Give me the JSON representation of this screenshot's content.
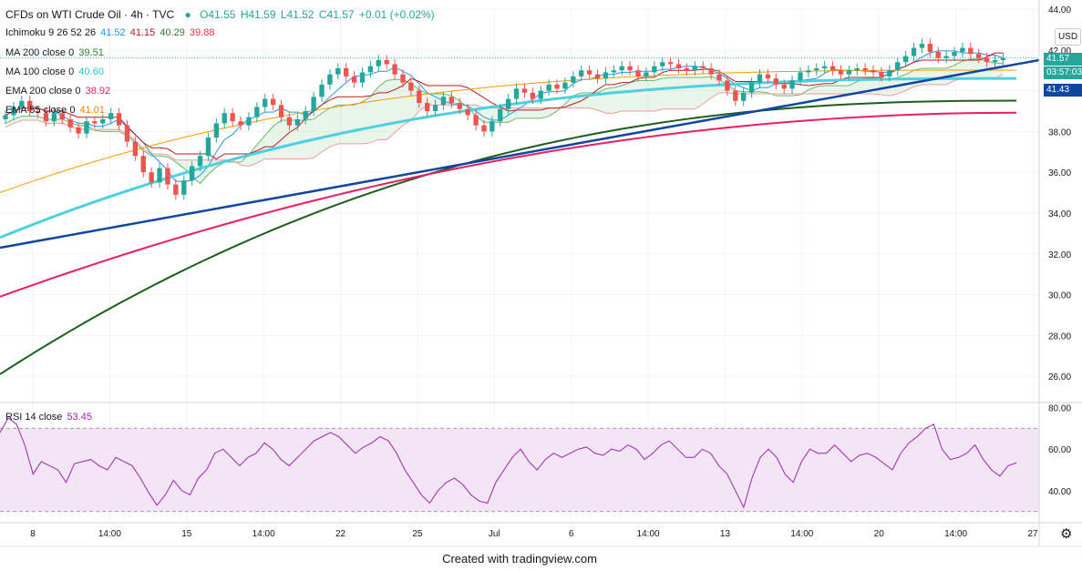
{
  "header": {
    "symbol": "CFDs on WTI Crude Oil · 4h · TVC",
    "open": "O41.55",
    "high": "H41.59",
    "low": "L41.52",
    "close": "C41.57",
    "change": "+0.01 (+0.02%)"
  },
  "indicators": [
    {
      "label": "Ichimoku 9 26 52 26",
      "values": [
        "41.52",
        "41.15",
        "40.29",
        "39.88"
      ],
      "colors": [
        "#2196f3",
        "#b71c1c",
        "#2e7d32",
        "#e53935"
      ]
    },
    {
      "label": "MA 200 close 0",
      "values": [
        "39.51"
      ],
      "colors": [
        "#2e7d32"
      ]
    },
    {
      "label": "MA 100 close 0",
      "values": [
        "40.60"
      ],
      "colors": [
        "#26c6da"
      ]
    },
    {
      "label": "EMA 200 close 0",
      "values": [
        "38.92"
      ],
      "colors": [
        "#e91e63"
      ]
    },
    {
      "label": "EMA 55 close 0",
      "values": [
        "41.01"
      ],
      "colors": [
        "#f57c00"
      ]
    }
  ],
  "rsi": {
    "label": "RSI 14 close",
    "value": "53.45"
  },
  "price_axis": {
    "currency": "USD",
    "current_price": "41.57",
    "countdown": "03:57:03",
    "tag_value": "41.43",
    "top_label": "44.00"
  },
  "footer": "Created with tradingview.com",
  "colors": {
    "up": "#26a69a",
    "down": "#ef5350",
    "trendline": "#0d47a1",
    "rsi": "#9c27b0",
    "rsi_band": "#f3e5f5"
  },
  "chart_data": [
    {
      "type": "candlestick",
      "title": "CFDs on WTI Crude Oil · 4h · TVC",
      "ylim": [
        24.8,
        44
      ],
      "y_ticks": [
        26,
        28,
        30,
        32,
        34,
        36,
        38,
        40,
        42,
        44
      ],
      "x_ticks": [
        "8",
        "14:00",
        "15",
        "14:00",
        "22",
        "25",
        "Jul",
        "6",
        "14:00",
        "13",
        "14:00",
        "20",
        "14:00",
        "27"
      ],
      "close_series": [
        38.8,
        39.2,
        39.5,
        39.0,
        38.9,
        38.5,
        38.9,
        38.6,
        38.2,
        37.9,
        38.5,
        38.4,
        38.6,
        38.9,
        38.3,
        37.5,
        36.8,
        36.0,
        35.5,
        36.2,
        35.4,
        34.9,
        35.6,
        36.3,
        36.8,
        37.7,
        38.4,
        38.9,
        38.5,
        38.3,
        38.7,
        39.2,
        39.6,
        39.3,
        38.7,
        38.3,
        38.6,
        39.0,
        39.7,
        40.3,
        40.8,
        41.1,
        40.7,
        40.4,
        40.9,
        41.2,
        41.5,
        41.3,
        40.8,
        40.4,
        40.0,
        39.4,
        39.0,
        39.3,
        39.7,
        39.4,
        39.1,
        38.8,
        38.3,
        38.0,
        38.5,
        39.1,
        39.6,
        40.1,
        39.9,
        39.6,
        40.0,
        40.3,
        40.1,
        40.4,
        40.7,
        41.0,
        40.8,
        40.6,
        40.9,
        41.0,
        41.2,
        41.0,
        40.7,
        40.9,
        41.2,
        41.4,
        41.3,
        41.1,
        41.0,
        41.2,
        41.1,
        40.8,
        40.5,
        40.0,
        39.5,
        39.9,
        40.4,
        40.8,
        40.6,
        40.3,
        40.1,
        40.5,
        40.9,
        41.0,
        41.1,
        41.2,
        41.0,
        40.8,
        41.0,
        41.1,
        41.0,
        40.9,
        40.7,
        41.0,
        41.4,
        41.7,
        42.1,
        42.3,
        41.9,
        41.6,
        41.7,
        41.9,
        42.1,
        41.8,
        41.6,
        41.4,
        41.5,
        41.6
      ],
      "series": [
        {
          "name": "MA 200 close 0",
          "start": 26.1,
          "end": 39.51
        },
        {
          "name": "EMA 200 close 0",
          "start": 29.9,
          "end": 38.92
        },
        {
          "name": "MA 100 close 0",
          "start": 32.8,
          "end": 40.6
        },
        {
          "name": "EMA 55 close 0",
          "start": 35.0,
          "end": 41.01
        },
        {
          "name": "Trendline",
          "start": 32.3,
          "end": 41.5
        }
      ]
    },
    {
      "type": "line",
      "title": "RSI 14 close",
      "ylim": [
        25,
        82
      ],
      "y_ticks": [
        40,
        60,
        80
      ],
      "bands": [
        30,
        70
      ],
      "values": [
        68,
        75,
        72,
        62,
        48,
        54,
        52,
        50,
        44,
        53,
        54,
        55,
        52,
        50,
        56,
        54,
        52,
        46,
        39,
        33,
        38,
        45,
        40,
        38,
        46,
        50,
        58,
        60,
        56,
        52,
        56,
        58,
        63,
        60,
        55,
        52,
        56,
        60,
        64,
        66,
        68,
        66,
        62,
        58,
        61,
        63,
        66,
        64,
        58,
        50,
        44,
        38,
        34,
        40,
        44,
        46,
        43,
        38,
        35,
        34,
        44,
        50,
        56,
        60,
        54,
        50,
        55,
        58,
        56,
        58,
        60,
        61,
        58,
        57,
        60,
        59,
        62,
        60,
        55,
        58,
        62,
        64,
        60,
        56,
        56,
        60,
        58,
        52,
        48,
        40,
        32,
        46,
        56,
        60,
        56,
        48,
        44,
        54,
        60,
        58,
        58,
        62,
        58,
        54,
        57,
        58,
        56,
        53,
        50,
        58,
        63,
        66,
        70,
        72,
        60,
        55,
        56,
        58,
        62,
        55,
        50,
        47,
        52,
        53.45
      ]
    }
  ]
}
